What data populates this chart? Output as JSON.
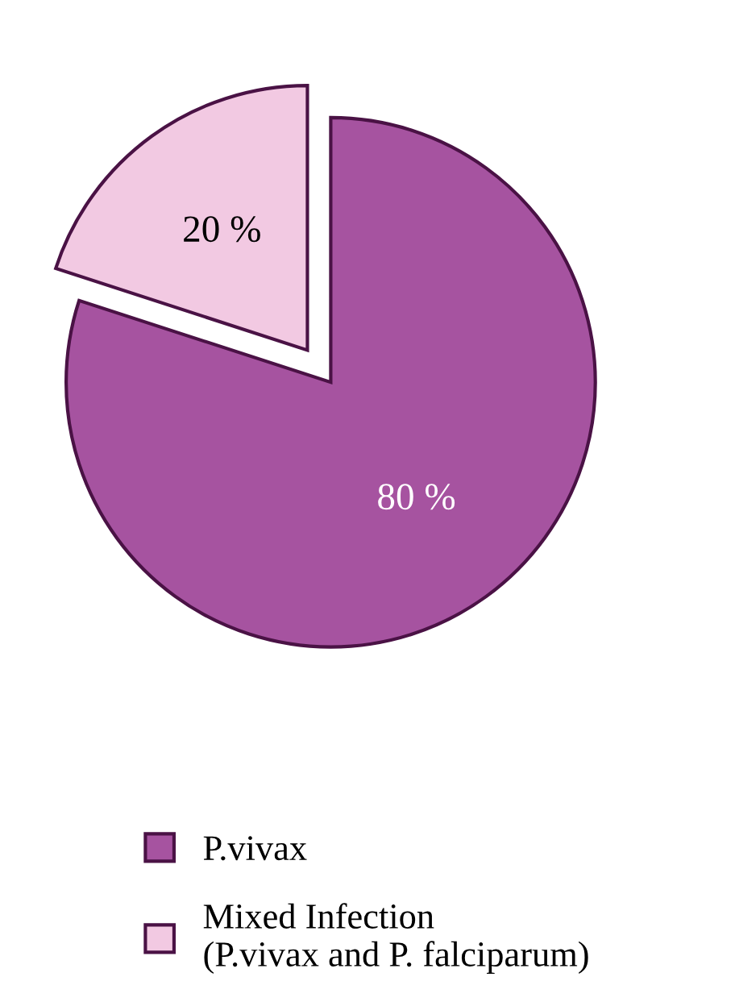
{
  "chart_data": {
    "type": "pie",
    "categories": [
      "P.vivax",
      "Mixed Infection\n(P.vivax and P. falciparum)"
    ],
    "values": [
      80,
      20
    ],
    "colors": [
      "#a653a0",
      "#f2c9e2"
    ],
    "value_labels": [
      "80 %",
      "20 %"
    ],
    "legend": "bottom"
  }
}
